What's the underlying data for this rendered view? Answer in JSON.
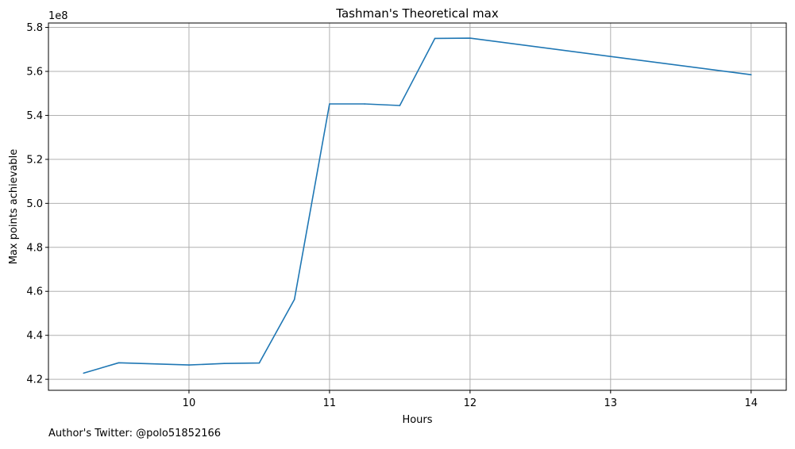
{
  "chart_data": {
    "type": "line",
    "title": "Tashman's Theoretical max",
    "xlabel": "Hours",
    "ylabel": "Max points achievable",
    "y_offset_text": "1e8",
    "footnote": "Author's Twitter: @polo51852166",
    "grid": true,
    "line_color": "#1f77b4",
    "xlim": [
      9.0,
      14.25
    ],
    "ylim": [
      415000000,
      582000000
    ],
    "x_ticks": [
      10,
      11,
      12,
      13,
      14
    ],
    "x_tick_labels": [
      "10",
      "11",
      "12",
      "13",
      "14"
    ],
    "y_ticks": [
      420000000,
      440000000,
      460000000,
      480000000,
      500000000,
      520000000,
      540000000,
      560000000,
      580000000
    ],
    "y_tick_labels": [
      "4.2",
      "4.4",
      "4.6",
      "4.8",
      "5.0",
      "5.2",
      "5.4",
      "5.6",
      "5.8"
    ],
    "series": [
      {
        "x": [
          9.25,
          9.5,
          10.0,
          10.25,
          10.5,
          10.75,
          11.0,
          11.25,
          11.5,
          11.75,
          12.0,
          14.0
        ],
        "values": [
          422800000,
          427500000,
          426500000,
          427200000,
          427400000,
          456300000,
          545200000,
          545200000,
          544500000,
          575000000,
          575100000,
          558500000
        ]
      }
    ]
  }
}
